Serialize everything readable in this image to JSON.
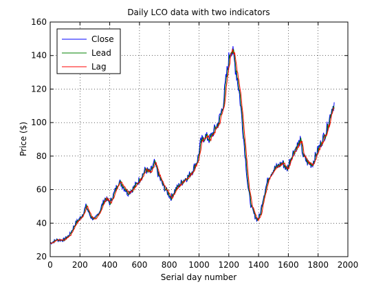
{
  "chart_data": {
    "type": "line",
    "title": "Daily LCO data with two indicators",
    "xlabel": "Serial day number",
    "ylabel": "Price ($)",
    "xlim": [
      0,
      2000
    ],
    "ylim": [
      20,
      160
    ],
    "xticks": [
      0,
      200,
      400,
      600,
      800,
      1000,
      1200,
      1400,
      1600,
      1800,
      2000
    ],
    "yticks": [
      20,
      40,
      60,
      80,
      100,
      120,
      140,
      160
    ],
    "grid": true,
    "legend_position": "top-left",
    "anchors": [
      [
        0,
        28
      ],
      [
        40,
        30
      ],
      [
        90,
        30
      ],
      [
        130,
        33
      ],
      [
        170,
        40
      ],
      [
        210,
        44
      ],
      [
        240,
        50
      ],
      [
        270,
        44
      ],
      [
        300,
        42
      ],
      [
        330,
        47
      ],
      [
        370,
        55
      ],
      [
        400,
        52
      ],
      [
        430,
        58
      ],
      [
        460,
        65
      ],
      [
        490,
        62
      ],
      [
        520,
        58
      ],
      [
        560,
        61
      ],
      [
        600,
        66
      ],
      [
        640,
        72
      ],
      [
        670,
        70
      ],
      [
        700,
        76
      ],
      [
        730,
        68
      ],
      [
        760,
        62
      ],
      [
        790,
        58
      ],
      [
        810,
        55
      ],
      [
        840,
        60
      ],
      [
        870,
        63
      ],
      [
        900,
        66
      ],
      [
        930,
        68
      ],
      [
        960,
        72
      ],
      [
        990,
        78
      ],
      [
        1010,
        88
      ],
      [
        1040,
        92
      ],
      [
        1070,
        90
      ],
      [
        1100,
        95
      ],
      [
        1130,
        100
      ],
      [
        1160,
        110
      ],
      [
        1180,
        125
      ],
      [
        1200,
        138
      ],
      [
        1215,
        145
      ],
      [
        1230,
        140
      ],
      [
        1250,
        130
      ],
      [
        1270,
        118
      ],
      [
        1290,
        100
      ],
      [
        1310,
        80
      ],
      [
        1330,
        60
      ],
      [
        1350,
        50
      ],
      [
        1370,
        45
      ],
      [
        1390,
        42
      ],
      [
        1410,
        45
      ],
      [
        1430,
        55
      ],
      [
        1450,
        62
      ],
      [
        1470,
        68
      ],
      [
        1500,
        72
      ],
      [
        1530,
        74
      ],
      [
        1560,
        76
      ],
      [
        1590,
        72
      ],
      [
        1620,
        80
      ],
      [
        1650,
        85
      ],
      [
        1680,
        89
      ],
      [
        1700,
        80
      ],
      [
        1730,
        76
      ],
      [
        1760,
        75
      ],
      [
        1790,
        82
      ],
      [
        1820,
        88
      ],
      [
        1850,
        94
      ],
      [
        1870,
        100
      ],
      [
        1890,
        108
      ],
      [
        1910,
        112
      ]
    ],
    "series": [
      {
        "name": "Close",
        "color": "#0000ff",
        "lag": 0,
        "noise": 2.2
      },
      {
        "name": "Lead",
        "color": "#008000",
        "lag": 4,
        "noise": 1.4
      },
      {
        "name": "Lag",
        "color": "#ff0000",
        "lag": 10,
        "noise": 0.7
      }
    ]
  }
}
